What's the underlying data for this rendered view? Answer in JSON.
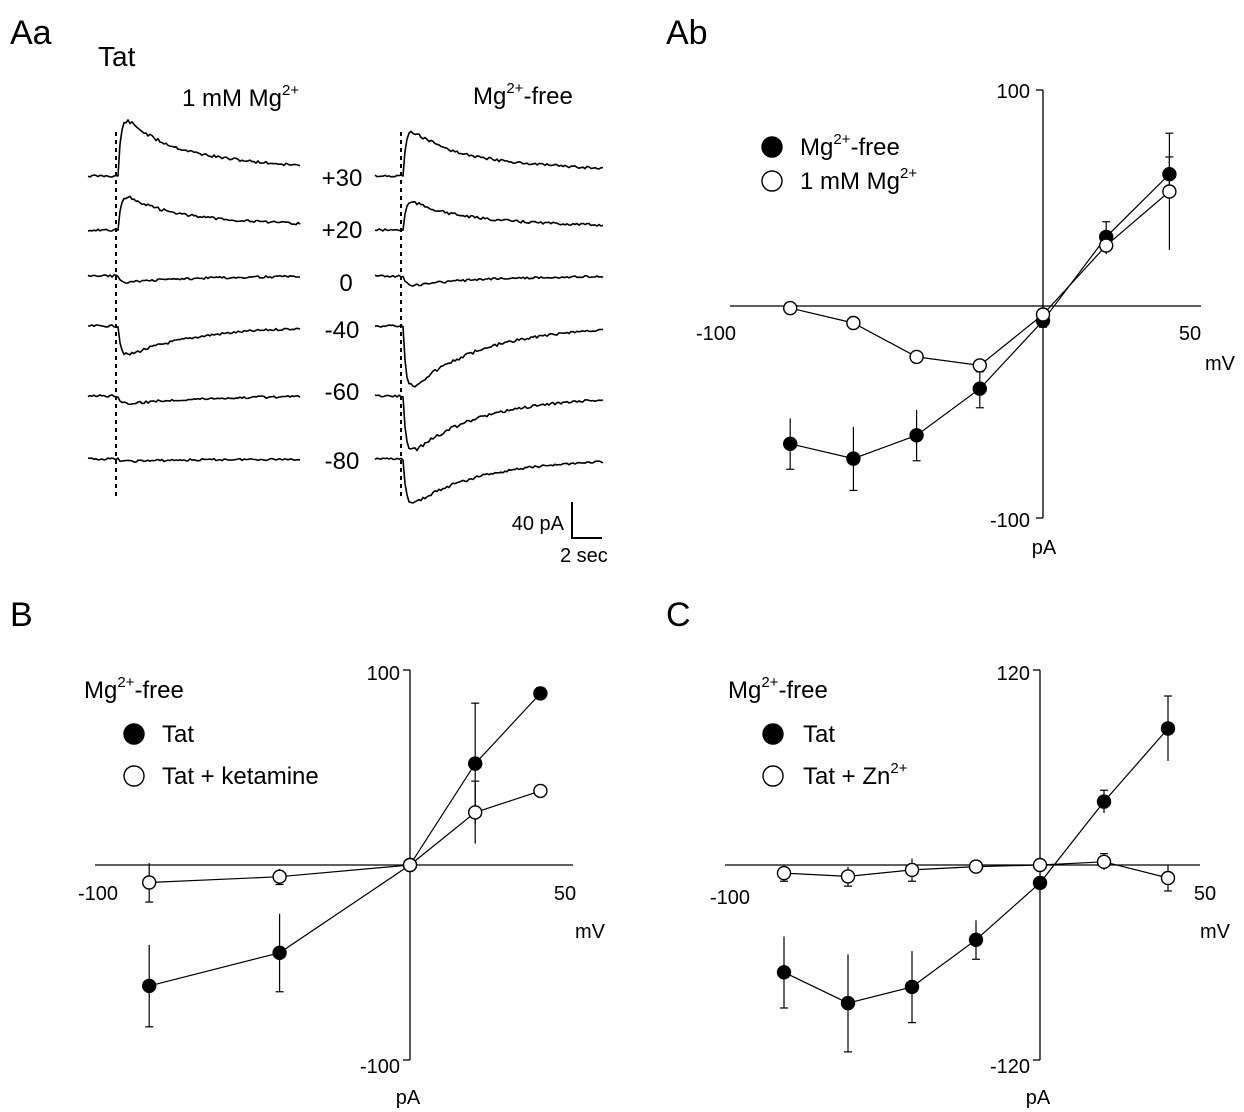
{
  "panels": {
    "Aa": {
      "label": "Aa",
      "drug": "Tat",
      "cond_left": {
        "pre": "1 mM Mg",
        "sup": "2+",
        "post": ""
      },
      "cond_right": {
        "pre": "Mg",
        "sup": "2+",
        "post": "-free"
      },
      "voltages": [
        "+30",
        "+20",
        "0",
        "-40",
        "-60",
        "-80"
      ],
      "amp_left": [
        75,
        45,
        -8,
        -38,
        -10,
        -3
      ],
      "amp_right": [
        60,
        38,
        -12,
        -80,
        -72,
        -58
      ],
      "scale_y": "40 pA",
      "scale_x": "2 sec"
    },
    "Ab": {
      "label": "Ab"
    },
    "B": {
      "label": "B"
    },
    "C": {
      "label": "C"
    }
  },
  "chart_data": [
    {
      "id": "Ab",
      "type": "scatter",
      "xlabel": "mV",
      "ylabel": "pA",
      "xlim": [
        -100,
        50
      ],
      "ylim": [
        -100,
        100
      ],
      "x_tick_labels": [
        "-100",
        "50"
      ],
      "y_tick_labels": [
        "100",
        "-100"
      ],
      "legend_position": "top-left",
      "series": [
        {
          "name": {
            "pre": "Mg",
            "sup": "2+",
            "post": "-free"
          },
          "marker": "filled",
          "x": [
            -80,
            -60,
            -40,
            -20,
            0,
            20,
            40
          ],
          "y": [
            -65,
            -72,
            -61,
            -39,
            -7,
            32,
            61
          ],
          "err": [
            12,
            15,
            12,
            9,
            3,
            7,
            8
          ]
        },
        {
          "name": {
            "pre": "1 mM  Mg",
            "sup": "2+",
            "post": ""
          },
          "marker": "open",
          "x": [
            -80,
            -60,
            -40,
            -20,
            0,
            20,
            40
          ],
          "y": [
            -1,
            -8,
            -24,
            -28,
            -4,
            28,
            53
          ],
          "err": [
            0,
            0,
            0,
            3,
            2,
            4,
            27
          ]
        }
      ]
    },
    {
      "id": "B",
      "type": "scatter",
      "title": {
        "pre": "Mg",
        "sup": "2+",
        "post": "-free"
      },
      "xlabel": "mV",
      "ylabel": "pA",
      "xlim": [
        -100,
        50
      ],
      "ylim": [
        -100,
        100
      ],
      "x_tick_labels": [
        "-100",
        "50"
      ],
      "y_tick_labels": [
        "100",
        "-100"
      ],
      "legend_position": "top-left",
      "series": [
        {
          "name": {
            "pre": "Tat",
            "sup": "",
            "post": ""
          },
          "marker": "filled",
          "x": [
            -80,
            -40,
            0,
            20,
            40
          ],
          "y": [
            -62,
            -45,
            0,
            52,
            88
          ],
          "err": [
            21,
            20,
            0,
            31,
            3
          ]
        },
        {
          "name": {
            "pre": "Tat + ketamine",
            "sup": "",
            "post": ""
          },
          "marker": "open",
          "x": [
            -80,
            -40,
            0,
            20,
            40
          ],
          "y": [
            -9,
            -6,
            0,
            27,
            38
          ],
          "err": [
            10,
            4,
            0,
            16,
            0
          ]
        }
      ]
    },
    {
      "id": "C",
      "type": "scatter",
      "title": {
        "pre": "Mg",
        "sup": "2+",
        "post": "-free"
      },
      "xlabel": "mV",
      "ylabel": "pA",
      "xlim": [
        -100,
        50
      ],
      "ylim": [
        -120,
        120
      ],
      "x_tick_labels": [
        "-100",
        "50"
      ],
      "y_tick_labels": [
        "120",
        "-120"
      ],
      "legend_position": "top-left",
      "series": [
        {
          "name": {
            "pre": "Tat",
            "sup": "",
            "post": ""
          },
          "marker": "filled",
          "x": [
            -80,
            -60,
            -40,
            -20,
            0,
            20,
            40
          ],
          "y": [
            -66,
            -85,
            -75,
            -46,
            -11,
            39,
            84
          ],
          "err": [
            22,
            30,
            22,
            12,
            0,
            7,
            20
          ]
        },
        {
          "name": {
            "pre": "Tat + Zn",
            "sup": "2+",
            "post": ""
          },
          "marker": "open",
          "x": [
            -80,
            -60,
            -40,
            -20,
            0,
            20,
            40
          ],
          "y": [
            -5,
            -7,
            -3,
            -1,
            0,
            2,
            -8
          ],
          "err": [
            5,
            6,
            7,
            0,
            0,
            5,
            8
          ]
        }
      ]
    }
  ]
}
